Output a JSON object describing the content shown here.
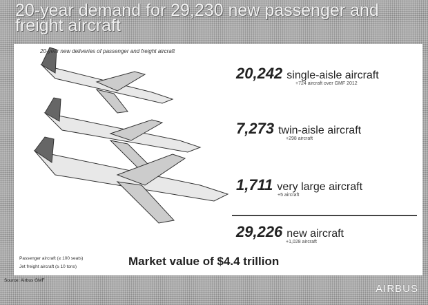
{
  "header": {
    "title": "20-year demand for 29,230 new passenger and freight aircraft"
  },
  "panel": {
    "subtitle": "20-year new deliveries of passenger and freight aircraft",
    "items": [
      {
        "number": "20,242",
        "label": "single-aisle aircraft",
        "note": "+724 aircraft over GMF 2012"
      },
      {
        "number": "7,273",
        "label": "twin-aisle aircraft",
        "note": "+298 aircraft"
      },
      {
        "number": "1,711",
        "label": "very large aircraft",
        "note": "+5 aircraft"
      }
    ],
    "total": {
      "number": "29,226",
      "label": "new aircraft",
      "note": "+1,028 aircraft"
    },
    "market": "Market value of $4.4 trillion",
    "footnotes": [
      "Passenger aircraft (≥ 100 seats)",
      "Jet freight aircraft (≥ 10 tons)"
    ]
  },
  "footer": {
    "source": "Source: Airbus GMF",
    "logo": "AIRBUS"
  }
}
